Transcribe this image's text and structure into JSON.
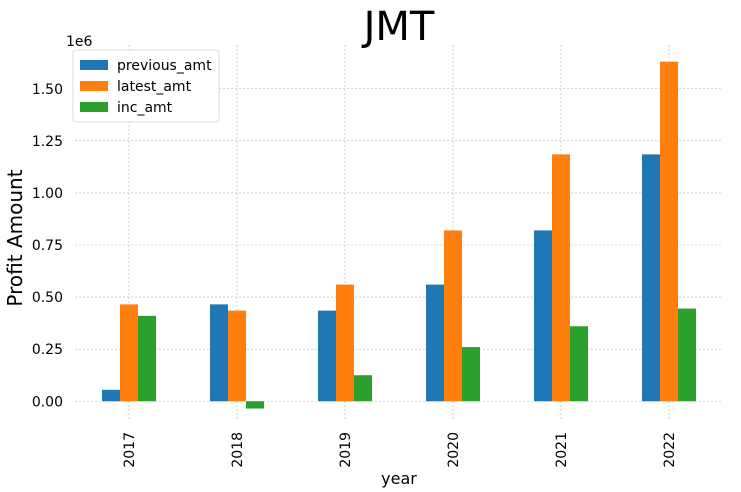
{
  "chart_data": {
    "type": "bar",
    "title": "JMT",
    "xlabel": "year",
    "ylabel": "Profit Amount",
    "offset_label": "1e6",
    "categories": [
      "2017",
      "2018",
      "2019",
      "2020",
      "2021",
      "2022"
    ],
    "series": [
      {
        "name": "previous_amt",
        "color": "#1f77b4",
        "values": [
          0.055,
          0.465,
          0.435,
          0.56,
          0.82,
          1.185
        ]
      },
      {
        "name": "latest_amt",
        "color": "#ff7f0e",
        "values": [
          0.465,
          0.435,
          0.56,
          0.82,
          1.185,
          1.63
        ]
      },
      {
        "name": "inc_amt",
        "color": "#2ca02c",
        "values": [
          0.41,
          -0.035,
          0.125,
          0.26,
          0.36,
          0.445
        ]
      }
    ],
    "ylim": [
      -0.09,
      1.71
    ],
    "yticks": [
      0.0,
      0.25,
      0.5,
      0.75,
      1.0,
      1.25,
      1.5
    ],
    "ytick_labels": [
      "0.00",
      "0.25",
      "0.50",
      "0.75",
      "1.00",
      "1.25",
      "1.50"
    ],
    "grid": true,
    "legend_position": "top-left"
  }
}
